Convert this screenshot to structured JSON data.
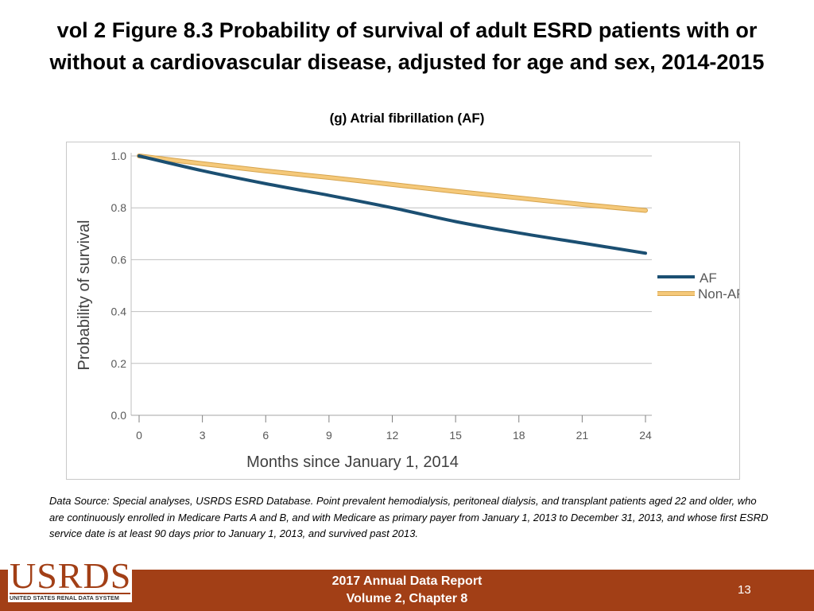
{
  "slide": {
    "title_line1": "vol 2 Figure 8.3 Probability of survival of adult ESRD patients with or",
    "title_line2": "without a cardiovascular disease, adjusted for age and sex, 2014-2015",
    "subtitle": "(g) Atrial fibrillation (AF)",
    "source_note": "Data Source: Special analyses, USRDS ESRD Database. Point prevalent hemodialysis, peritoneal dialysis, and transplant patients aged 22 and older, who are continuously enrolled in Medicare Parts A and B, and with Medicare as primary payer from January 1, 2013 to December 31, 2013, and whose first ESRD service date is at least 90 days prior to January 1, 2013, and survived past 2013."
  },
  "footer": {
    "line1": "2017 Annual Data Report",
    "line2": "Volume 2, Chapter 8",
    "page_number": "13",
    "logo_text": "USRDS",
    "logo_subtext": "UNITED STATES RENAL DATA SYSTEM"
  },
  "colors": {
    "footer_bar": "#a23f16",
    "af_line": "#1b4f72",
    "nonaf_line": "#f5c97a",
    "nonaf_edge": "#d6a44e",
    "gridline": "#bfbfbf"
  },
  "chart_data": {
    "type": "line",
    "title": "(g) Atrial fibrillation (AF)",
    "xlabel": "Months since January 1, 2014",
    "ylabel": "Probability of survival",
    "xlim": [
      0,
      24
    ],
    "ylim": [
      0,
      1.0
    ],
    "x_ticks": [
      "0",
      "3",
      "6",
      "9",
      "12",
      "15",
      "18",
      "21",
      "24"
    ],
    "y_ticks": [
      "0.0",
      "0.2",
      "0.4",
      "0.6",
      "0.8",
      "1.0"
    ],
    "x": [
      0,
      3,
      6,
      9,
      12,
      15,
      18,
      21,
      24
    ],
    "series": [
      {
        "name": "AF",
        "values": [
          1.0,
          0.943,
          0.893,
          0.848,
          0.8,
          0.747,
          0.703,
          0.664,
          0.625
        ]
      },
      {
        "name": "Non-AF",
        "values": [
          1.0,
          0.97,
          0.942,
          0.917,
          0.89,
          0.863,
          0.838,
          0.813,
          0.79
        ]
      }
    ],
    "legend_position": "right",
    "grid": true
  }
}
